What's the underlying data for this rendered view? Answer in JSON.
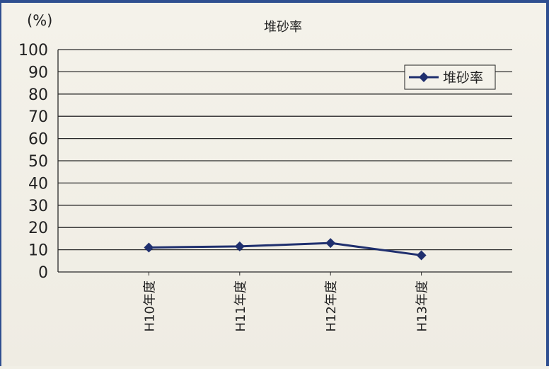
{
  "chart_data": {
    "type": "line",
    "title": "堆砂率",
    "ylabel": "(%)",
    "xlabel": "",
    "ylim": [
      0,
      100
    ],
    "yticks": [
      0,
      10,
      20,
      30,
      40,
      50,
      60,
      70,
      80,
      90,
      100
    ],
    "categories": [
      "H10年度",
      "H11年度",
      "H12年度",
      "H13年度"
    ],
    "series": [
      {
        "name": "堆砂率",
        "values": [
          11,
          11.5,
          13,
          7.5
        ]
      }
    ],
    "grid": true,
    "legend": "top-right",
    "colors": {
      "series": "#1f2f6e",
      "grid": "#2a2a2a",
      "text": "#222222"
    }
  }
}
